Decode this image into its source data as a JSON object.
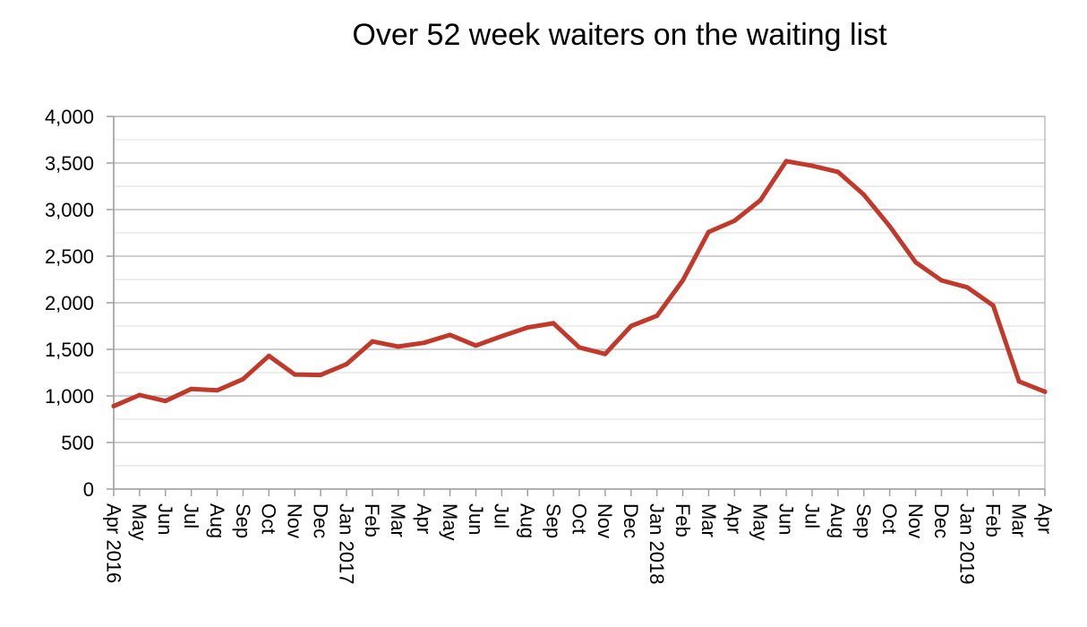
{
  "chart_data": {
    "type": "line",
    "title": "Over 52 week waiters on the waiting list",
    "xlabel": "",
    "ylabel": "",
    "ylim": [
      0,
      4000
    ],
    "y_ticks": [
      {
        "value": 0,
        "label": "0"
      },
      {
        "value": 500,
        "label": "500"
      },
      {
        "value": 1000,
        "label": "1,000"
      },
      {
        "value": 1500,
        "label": "1,500"
      },
      {
        "value": 2000,
        "label": "2,000"
      },
      {
        "value": 2500,
        "label": "2,500"
      },
      {
        "value": 3000,
        "label": "3,000"
      },
      {
        "value": 3500,
        "label": "3,500"
      },
      {
        "value": 4000,
        "label": "4,000"
      }
    ],
    "grid": true,
    "legend": "none",
    "categories": [
      "Apr 2016",
      "May",
      "Jun",
      "Jul",
      "Aug",
      "Sep",
      "Oct",
      "Nov",
      "Dec",
      "Jan 2017",
      "Feb",
      "Mar",
      "Apr",
      "May",
      "Jun",
      "Jul",
      "Aug",
      "Sep",
      "Oct",
      "Nov",
      "Dec",
      "Jan 2018",
      "Feb",
      "Mar",
      "Apr",
      "May",
      "Jun",
      "Jul",
      "Aug",
      "Sep",
      "Oct",
      "Nov",
      "Dec",
      "Jan 2019",
      "Feb",
      "Mar",
      "Apr"
    ],
    "series": [
      {
        "color": "#c0392b",
        "values": [
          890,
          1010,
          945,
          1075,
          1060,
          1180,
          1430,
          1230,
          1225,
          1340,
          1585,
          1530,
          1570,
          1655,
          1540,
          1640,
          1735,
          1780,
          1520,
          1450,
          1750,
          1860,
          2240,
          2760,
          2880,
          3100,
          3520,
          3470,
          3405,
          3160,
          2820,
          2435,
          2240,
          2165,
          1970,
          1155,
          1045
        ]
      }
    ]
  }
}
